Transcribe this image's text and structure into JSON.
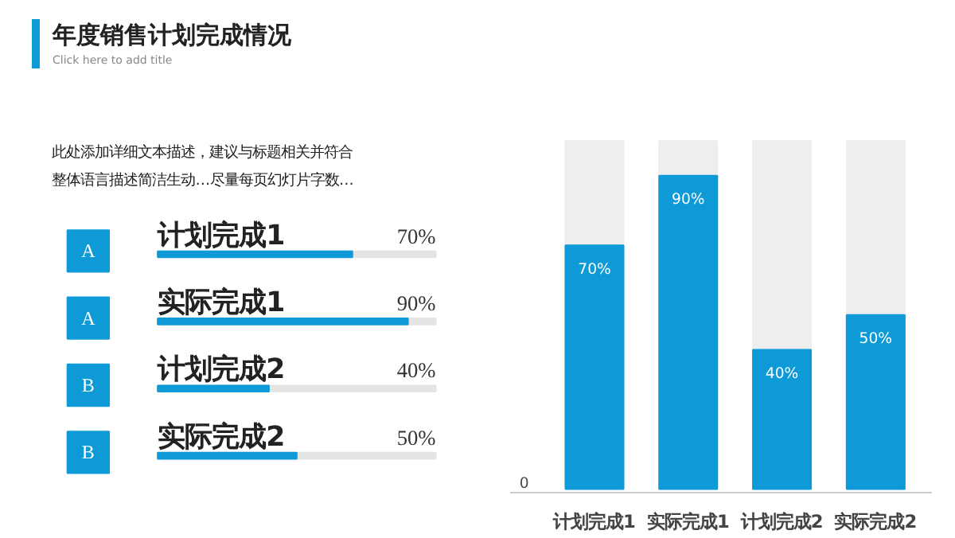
{
  "chart_data": [
    {
      "type": "bar",
      "orientation": "horizontal",
      "title": "年度销售计划完成情况",
      "subtitle": "Click here to add title",
      "annotations": [
        "此处添加详细文本描述，建议与标题相关并符合整体语言描述简洁生动…尽量每页幻灯片字数…",
        "A",
        "A",
        "B",
        "B"
      ],
      "categories": [
        "计划完成1",
        "实际完成1",
        "计划完成2",
        "实际完成2"
      ],
      "values": [
        70,
        90,
        40,
        50
      ],
      "value_labels": [
        "70%",
        "90%",
        "40%",
        "50%"
      ],
      "color": "#0e9ad7",
      "xlim": [
        0,
        100
      ],
      "tick_labels": false
    },
    {
      "type": "bar",
      "categories": [
        "计划完成1",
        "实际完成1",
        "计划完成2",
        "实际完成2"
      ],
      "values": [
        70,
        90,
        40,
        50
      ],
      "value_labels": [
        "70%",
        "90%",
        "40%",
        "50%"
      ],
      "color": "#0e9ad7",
      "ylim": [
        0,
        100
      ],
      "annotations": [
        "0"
      ],
      "tick_labels": "x",
      "grid": false
    }
  ]
}
